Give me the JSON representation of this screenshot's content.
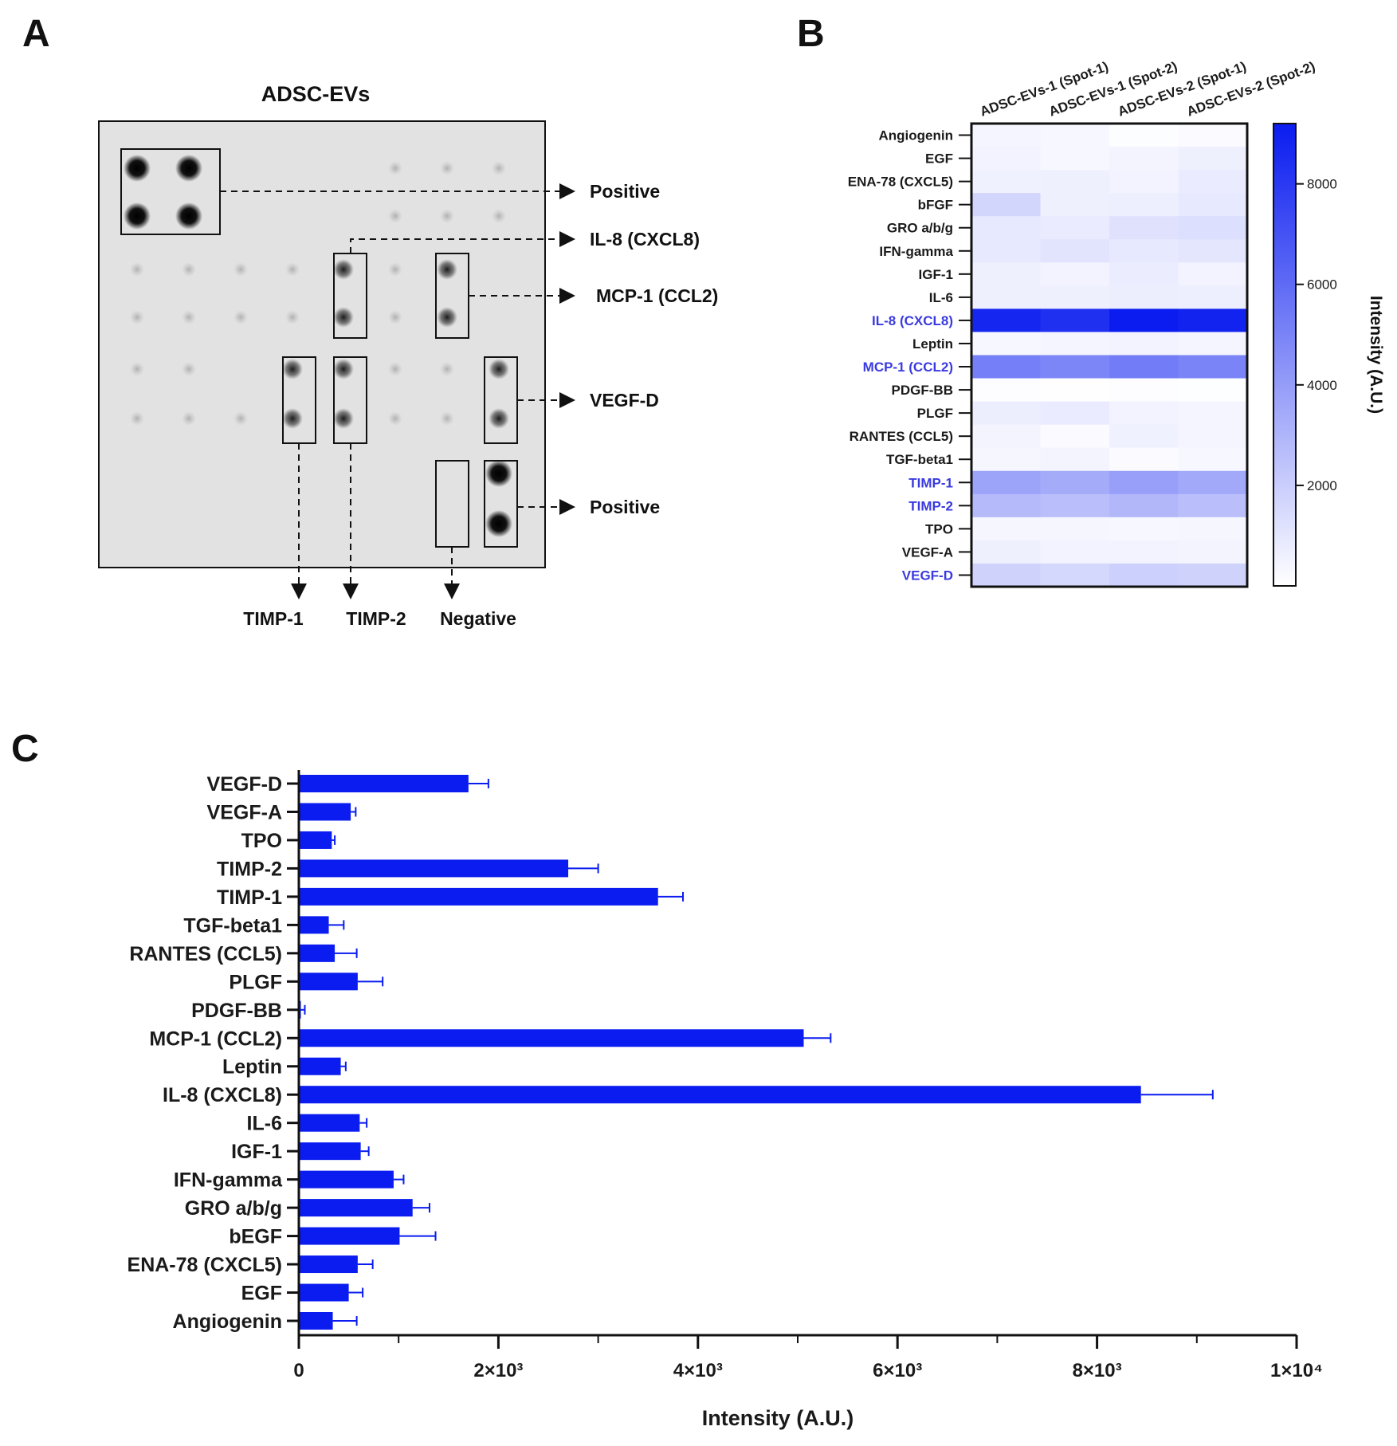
{
  "panel_labels": {
    "a": "A",
    "b": "B",
    "c": "C"
  },
  "panel_a": {
    "title": "ADSC-EVs",
    "annotations": [
      "Positive",
      "IL-8 (CXCL8)",
      "MCP-1 (CCL2)",
      "VEGF-D",
      "Positive"
    ],
    "bottom_labels": [
      "TIMP-1",
      "TIMP-2",
      "Negative"
    ]
  },
  "chart_data": [
    {
      "type": "heatmap",
      "panel": "B",
      "columns": [
        "ADSC-EVs-1 (Spot-1)",
        "ADSC-EVs-1 (Spot-2)",
        "ADSC-EVs-2 (Spot-1)",
        "ADSC-EVs-2 (Spot-2)"
      ],
      "rows": [
        "Angiogenin",
        "EGF",
        "ENA-78 (CXCL5)",
        "bFGF",
        "GRO a/b/g",
        "IFN-gamma",
        "IGF-1",
        "IL-6",
        "IL-8 (CXCL8)",
        "Leptin",
        "MCP-1 (CCL2)",
        "PDGF-BB",
        "PLGF",
        "RANTES (CCL5)",
        "TGF-beta1",
        "TIMP-1",
        "TIMP-2",
        "TPO",
        "VEGF-A",
        "VEGF-D"
      ],
      "highlighted_rows": [
        "IL-8 (CXCL8)",
        "MCP-1 (CCL2)",
        "TIMP-1",
        "TIMP-2",
        "VEGF-D"
      ],
      "values": [
        [
          400,
          300,
          100,
          200
        ],
        [
          500,
          300,
          450,
          600
        ],
        [
          550,
          600,
          500,
          800
        ],
        [
          1700,
          600,
          650,
          900
        ],
        [
          900,
          800,
          1200,
          1300
        ],
        [
          900,
          1100,
          900,
          1000
        ],
        [
          600,
          500,
          750,
          500
        ],
        [
          600,
          600,
          700,
          650
        ],
        [
          8800,
          8400,
          9200,
          8900
        ],
        [
          300,
          400,
          500,
          400
        ],
        [
          5200,
          4900,
          5300,
          5000
        ],
        [
          80,
          50,
          70,
          60
        ],
        [
          700,
          800,
          500,
          400
        ],
        [
          450,
          200,
          550,
          400
        ],
        [
          350,
          450,
          150,
          300
        ],
        [
          3700,
          3400,
          3900,
          3500
        ],
        [
          2800,
          2600,
          2900,
          2600
        ],
        [
          350,
          350,
          300,
          320
        ],
        [
          600,
          500,
          500,
          450
        ],
        [
          1800,
          1600,
          1900,
          1800
        ]
      ],
      "colorbar": {
        "label": "Intensity (A.U.)",
        "ticks": [
          2000,
          4000,
          6000,
          8000
        ],
        "range": [
          0,
          9200
        ],
        "color_low": "#ffffff",
        "color_high": "#0a1cf0"
      }
    },
    {
      "type": "bar",
      "panel": "C",
      "orientation": "horizontal",
      "categories": [
        "VEGF-D",
        "VEGF-A",
        "TPO",
        "TIMP-2",
        "TIMP-1",
        "TGF-beta1",
        "RANTES (CCL5)",
        "PLGF",
        "PDGF-BB",
        "MCP-1 (CCL2)",
        "Leptin",
        "IL-8 (CXCL8)",
        "IL-6",
        "IGF-1",
        "IFN-gamma",
        "GRO a/b/g",
        "bEGF",
        "ENA-78 (CXCL5)",
        "EGF",
        "Angiogenin"
      ],
      "values": [
        1700,
        520,
        330,
        2700,
        3600,
        300,
        360,
        590,
        20,
        5060,
        420,
        8440,
        610,
        620,
        950,
        1140,
        1010,
        590,
        500,
        340
      ],
      "errors": [
        200,
        50,
        30,
        300,
        250,
        150,
        220,
        250,
        40,
        270,
        50,
        720,
        70,
        80,
        100,
        170,
        360,
        150,
        140,
        240
      ],
      "xlabel": "Intensity (A.U.)",
      "xlim": [
        0,
        10000
      ],
      "xtick_values": [
        0,
        2000,
        4000,
        6000,
        8000,
        10000
      ],
      "xtick_labels": [
        "0",
        "2×10³",
        "4×10³",
        "6×10³",
        "8×10³",
        "1×10⁴"
      ],
      "bar_color": "#0a1cf0"
    }
  ],
  "colors": {
    "bar": "#0a1cf0",
    "highlight_label": "#3a3ae0",
    "text": "#1a1a1a"
  }
}
